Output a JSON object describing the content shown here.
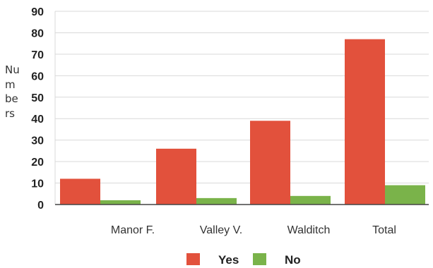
{
  "chart_data": {
    "type": "bar",
    "categories": [
      "Manor F.",
      "Valley V.",
      "Walditch",
      "Total"
    ],
    "series": [
      {
        "name": "Yes",
        "values": [
          12,
          26,
          39,
          77
        ],
        "color": "#e2513c"
      },
      {
        "name": "No",
        "values": [
          2,
          3,
          4,
          9
        ],
        "color": "#7ab34a"
      }
    ],
    "ylabel_lines": [
      "Nu",
      "m",
      "be",
      "rs"
    ],
    "ylim": [
      0,
      90
    ],
    "yticks": [
      0,
      10,
      20,
      30,
      40,
      50,
      60,
      70,
      80,
      90
    ],
    "grid": true,
    "legend_position": "bottom"
  }
}
